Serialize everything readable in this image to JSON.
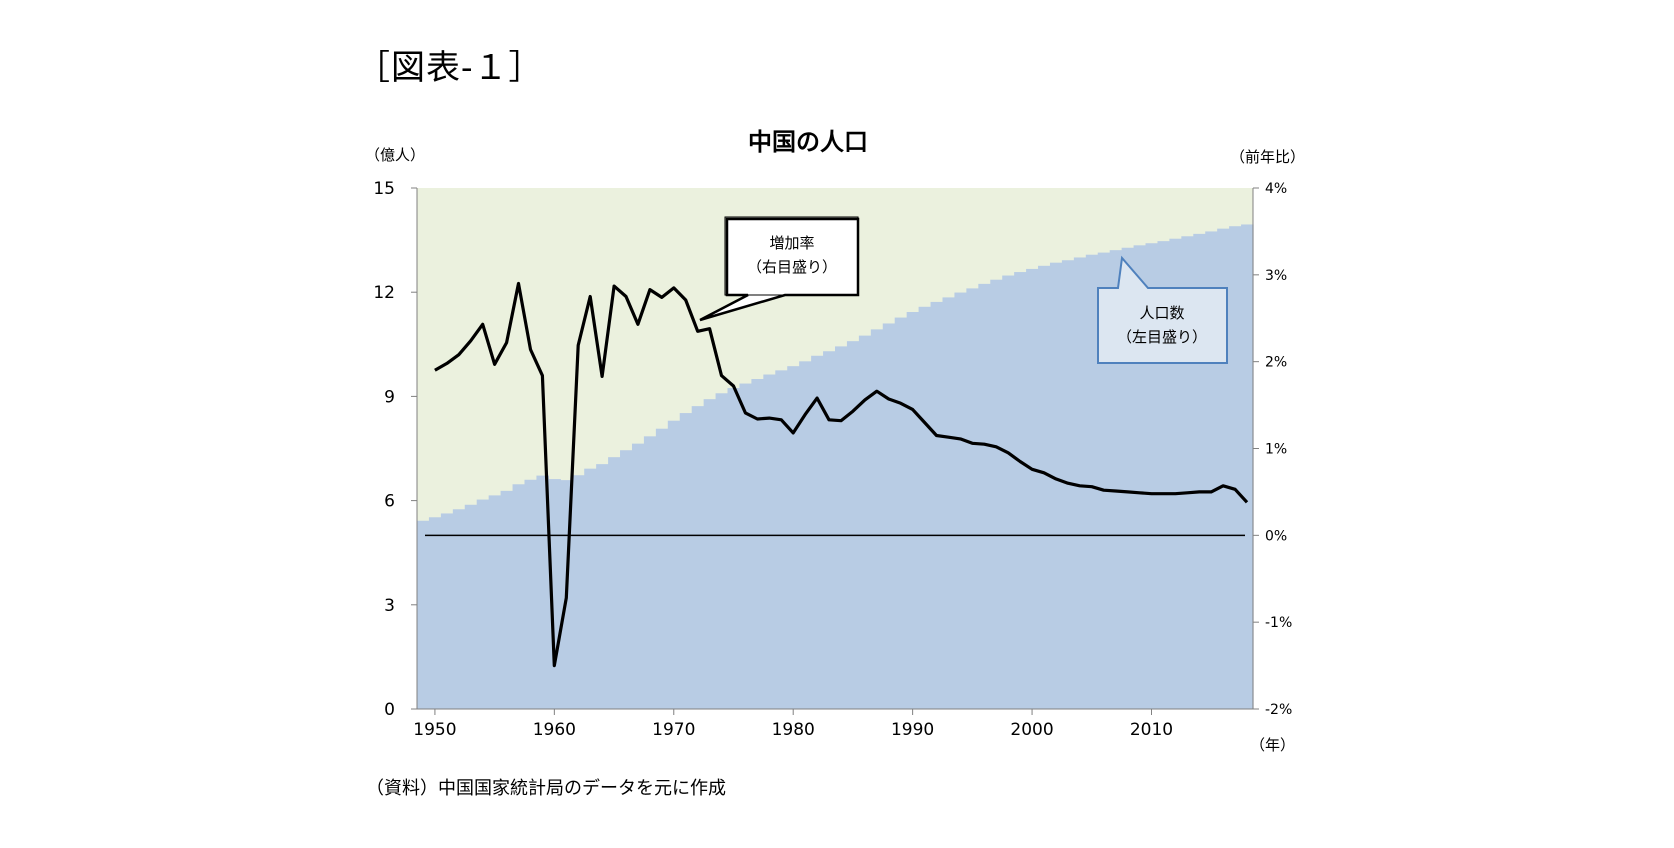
{
  "figure_label": "［図表-１］",
  "source_note": "（資料）中国国家統計局のデータを元に作成",
  "colors": {
    "population_fill": "#b8cce4",
    "background_fill": "#ebf1de",
    "growth_line": "#000000"
  },
  "chart_data": {
    "type": "area+line",
    "title": "中国の人口",
    "left_axis_unit": "（億人）",
    "right_axis_unit": "（前年比）",
    "x_axis_unit": "（年）",
    "xlim": [
      1950,
      2018
    ],
    "left_ylim": [
      0,
      15
    ],
    "right_ylim": [
      -2,
      4
    ],
    "left_ticks": [
      "0",
      "3",
      "6",
      "9",
      "12",
      "15"
    ],
    "right_ticks": [
      "-2%",
      "-1%",
      "0%",
      "1%",
      "2%",
      "3%",
      "4%"
    ],
    "x_ticks": [
      "1950",
      "1960",
      "1970",
      "1980",
      "1990",
      "2000",
      "2010"
    ],
    "grid": false,
    "years": [
      1949,
      1950,
      1951,
      1952,
      1953,
      1954,
      1955,
      1956,
      1957,
      1958,
      1959,
      1960,
      1961,
      1962,
      1963,
      1964,
      1965,
      1966,
      1967,
      1968,
      1969,
      1970,
      1971,
      1972,
      1973,
      1974,
      1975,
      1976,
      1977,
      1978,
      1979,
      1980,
      1981,
      1982,
      1983,
      1984,
      1985,
      1986,
      1987,
      1988,
      1989,
      1990,
      1991,
      1992,
      1993,
      1994,
      1995,
      1996,
      1997,
      1998,
      1999,
      2000,
      2001,
      2002,
      2003,
      2004,
      2005,
      2006,
      2007,
      2008,
      2009,
      2010,
      2011,
      2012,
      2013,
      2014,
      2015,
      2016,
      2017,
      2018
    ],
    "series": [
      {
        "name": "人口数",
        "label": "人口数\n（左目盛り）",
        "axis": "left",
        "type": "area",
        "values": [
          5.42,
          5.52,
          5.63,
          5.75,
          5.88,
          6.03,
          6.15,
          6.28,
          6.47,
          6.6,
          6.72,
          6.62,
          6.59,
          6.73,
          6.92,
          7.05,
          7.25,
          7.45,
          7.64,
          7.85,
          8.07,
          8.3,
          8.52,
          8.72,
          8.92,
          9.09,
          9.24,
          9.37,
          9.5,
          9.63,
          9.75,
          9.87,
          10.01,
          10.17,
          10.3,
          10.44,
          10.59,
          10.75,
          10.93,
          11.1,
          11.27,
          11.43,
          11.58,
          11.72,
          11.85,
          11.99,
          12.11,
          12.24,
          12.36,
          12.48,
          12.58,
          12.67,
          12.76,
          12.85,
          12.92,
          13.0,
          13.08,
          13.14,
          13.21,
          13.28,
          13.35,
          13.41,
          13.47,
          13.54,
          13.61,
          13.68,
          13.75,
          13.83,
          13.9,
          13.95
        ]
      },
      {
        "name": "増加率",
        "label": "増加率\n（右目盛り）",
        "axis": "right",
        "type": "line",
        "unit": "%",
        "years": [
          1950,
          1951,
          1952,
          1953,
          1954,
          1955,
          1956,
          1957,
          1958,
          1959,
          1960,
          1961,
          1962,
          1963,
          1964,
          1965,
          1966,
          1967,
          1968,
          1969,
          1970,
          1971,
          1972,
          1973,
          1974,
          1975,
          1976,
          1977,
          1978,
          1979,
          1980,
          1981,
          1982,
          1983,
          1984,
          1985,
          1986,
          1987,
          1988,
          1989,
          1990,
          1991,
          1992,
          1993,
          1994,
          1995,
          1996,
          1997,
          1998,
          1999,
          2000,
          2001,
          2002,
          2003,
          2004,
          2005,
          2006,
          2007,
          2008,
          2009,
          2010,
          2011,
          2012,
          2013,
          2014,
          2015,
          2016,
          2017,
          2018
        ],
        "values": [
          1.9,
          1.98,
          2.08,
          2.24,
          2.43,
          1.97,
          2.22,
          2.9,
          2.14,
          1.84,
          -1.5,
          -0.72,
          2.19,
          2.75,
          1.83,
          2.87,
          2.75,
          2.43,
          2.83,
          2.74,
          2.85,
          2.71,
          2.35,
          2.38,
          1.84,
          1.72,
          1.41,
          1.34,
          1.35,
          1.33,
          1.18,
          1.39,
          1.58,
          1.33,
          1.32,
          1.43,
          1.56,
          1.66,
          1.57,
          1.52,
          1.45,
          1.3,
          1.15,
          1.13,
          1.11,
          1.06,
          1.05,
          1.02,
          0.95,
          0.85,
          0.76,
          0.72,
          0.65,
          0.6,
          0.57,
          0.56,
          0.52,
          0.51,
          0.5,
          0.49,
          0.48,
          0.48,
          0.48,
          0.49,
          0.5,
          0.5,
          0.57,
          0.53,
          0.38
        ]
      }
    ],
    "zero_line": 0
  }
}
